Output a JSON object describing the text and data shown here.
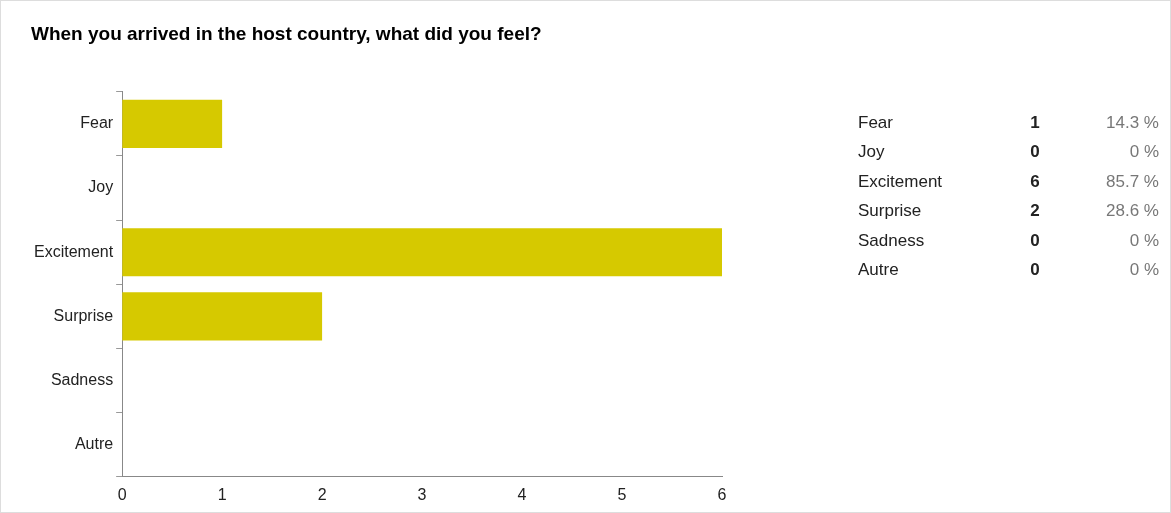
{
  "chart_data": {
    "type": "bar",
    "orientation": "horizontal",
    "title": "When you arrived in the host country, what did you feel?",
    "categories": [
      "Fear",
      "Joy",
      "Excitement",
      "Surprise",
      "Sadness",
      "Autre"
    ],
    "values": [
      1,
      0,
      6,
      2,
      0,
      0
    ],
    "color": "#d6c900",
    "xlim": [
      0,
      6
    ],
    "xticks": [
      0,
      1,
      2,
      3,
      4,
      5,
      6
    ],
    "grid": false,
    "legend": false,
    "annotations": [
      "Fear",
      "1",
      "14.3 %",
      "Joy",
      "0",
      "0 %",
      "Excitement",
      "6",
      "85.7 %",
      "Surprise",
      "2",
      "28.6 %",
      "Sadness",
      "0",
      "0 %",
      "Autre",
      "0",
      "0 %"
    ]
  }
}
